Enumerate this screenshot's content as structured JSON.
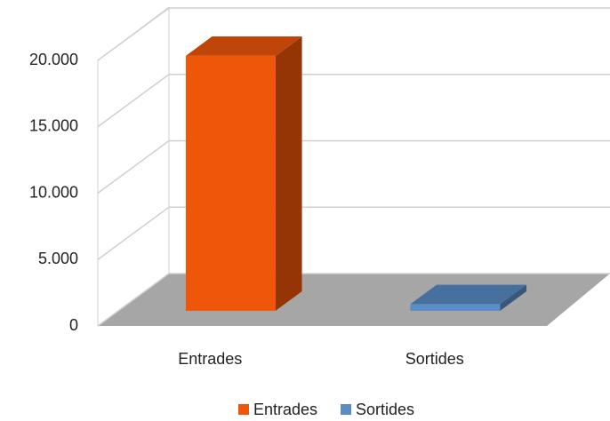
{
  "chart_data": {
    "type": "bar3d",
    "categories": [
      "Entrades",
      "Sortides"
    ],
    "series": [
      {
        "name": "Entrades",
        "color": "#f0560a",
        "values": [
          19200,
          null
        ]
      },
      {
        "name": "Sortides",
        "color": "#5a8cc6",
        "values": [
          null,
          500
        ]
      }
    ],
    "ylim": [
      0,
      20000
    ],
    "yticks": [
      {
        "value": 0,
        "label": "0"
      },
      {
        "value": 5000,
        "label": "5.000"
      },
      {
        "value": 10000,
        "label": "10.000"
      },
      {
        "value": 15000,
        "label": "15.000"
      },
      {
        "value": 20000,
        "label": "20.000"
      }
    ],
    "grid": true,
    "legend": "bottom"
  }
}
